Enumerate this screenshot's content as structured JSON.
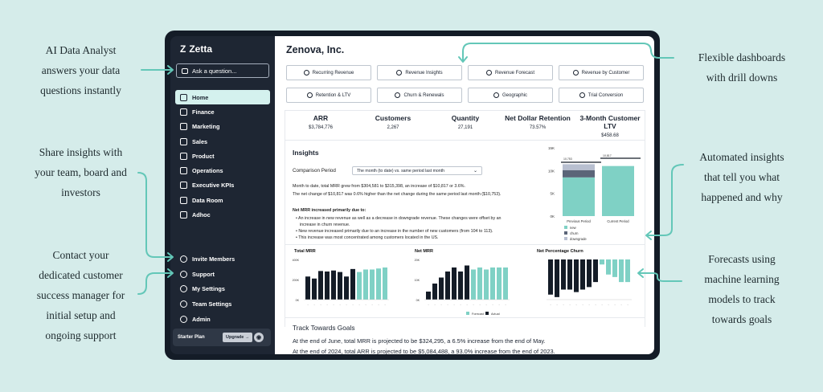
{
  "callouts": {
    "ai_analyst": [
      "AI Data Analyst",
      "answers your data",
      "questions instantly"
    ],
    "share": [
      "Share insights with",
      "your team, board and",
      "investors"
    ],
    "contact": [
      "Contact your",
      "dedicated customer",
      "success manager for",
      "initial setup and",
      "ongoing support"
    ],
    "dashboards": [
      "Flexible dashboards",
      "with drill downs"
    ],
    "insights": [
      "Automated insights",
      "that tell you what",
      "happened and why"
    ],
    "forecasts": [
      "Forecasts using",
      "machine learning",
      "models to track",
      "towards goals"
    ]
  },
  "app": {
    "logo": "Zetta",
    "ask_placeholder": "Ask a question..."
  },
  "sidebar": {
    "items": [
      {
        "label": "Home",
        "icon": "home-icon",
        "active": true
      },
      {
        "label": "Finance",
        "icon": "finance-icon"
      },
      {
        "label": "Marketing",
        "icon": "marketing-icon"
      },
      {
        "label": "Sales",
        "icon": "sales-icon"
      },
      {
        "label": "Product",
        "icon": "product-icon"
      },
      {
        "label": "Operations",
        "icon": "operations-icon"
      },
      {
        "label": "Executive KPIs",
        "icon": "kpi-icon"
      },
      {
        "label": "Data Room",
        "icon": "data-room-icon"
      },
      {
        "label": "Adhoc",
        "icon": "adhoc-icon"
      }
    ],
    "bottom": [
      {
        "label": "Invite Members",
        "icon": "plus-circle-icon"
      },
      {
        "label": "Support",
        "icon": "help-circle-icon"
      },
      {
        "label": "My Settings",
        "icon": "settings-icon"
      },
      {
        "label": "Team Settings",
        "icon": "team-icon"
      },
      {
        "label": "Admin",
        "icon": "user-icon"
      }
    ],
    "plan": "Starter Plan",
    "upgrade": "Upgrade →"
  },
  "main": {
    "company": "Zenova, Inc.",
    "dashboards": [
      "Recurring Revenue",
      "Revenue Insights",
      "Revenue Forecast",
      "Revenue by Customer",
      "Retention & LTV",
      "Churn & Renewals",
      "Geographic",
      "Trial Conversion"
    ],
    "kpis": [
      {
        "label": "ARR",
        "value": "$3,784,776"
      },
      {
        "label": "Customers",
        "value": "2,267"
      },
      {
        "label": "Quantity",
        "value": "27,191"
      },
      {
        "label": "Net Dollar Retention",
        "value": "73.57%"
      },
      {
        "label": "3-Month Customer LTV",
        "value": "$458.68"
      }
    ],
    "insights": {
      "title": "Insights",
      "comparison_label": "Comparison Period",
      "comparison_value": "The month (to date) vs. same period last month",
      "line1": "Month to date, total MRR grew from $304,581 to $315,398, an increase of $10,817 or 3.6%.",
      "line2": "The net change of $10,817 was 0.6% higher than the net change during the same period last month ($10,753).",
      "due_title": "Net MRR increased primarily due to:",
      "bullets": [
        "An increase in new revenue as well as a decrease in downgrade revenue. These changes were offset by an",
        "increase in churn revenue.",
        "New revenue increased primarily due to an increase in the number of new customers (from 104 to 113).",
        "This increase was most concentrated among customers located in the US."
      ]
    },
    "goals": {
      "title": "Track Towards Goals",
      "line1": "At the end of June, total MRR is projected to be $324,295, a 6.5% increase from the end of May.",
      "line2": "At the end of 2024, total ARR is projected to be $5,084,488, a 93.0% increase from the end of 2023."
    }
  },
  "chart_data": [
    {
      "type": "bar",
      "title": "",
      "categories": [
        "Previous Period",
        "Current Period"
      ],
      "series": [
        {
          "name": "new",
          "values": [
            8.5,
            11
          ]
        },
        {
          "name": "churn",
          "values": [
            1.6,
            0
          ]
        },
        {
          "name": "downgrade",
          "values": [
            1.3,
            0
          ]
        }
      ],
      "yticks": [
        "15K",
        "10K",
        "5K",
        "0K"
      ],
      "ylim": [
        0,
        15
      ],
      "markers": [
        "10,753",
        "10,817"
      ]
    },
    {
      "type": "bar",
      "title": "Total MRR",
      "yticks": [
        "400K",
        "200K",
        "0K"
      ],
      "ylim": [
        0,
        400
      ],
      "series": [
        {
          "name": "Actual",
          "values": [
            230,
            210,
            285,
            280,
            290,
            275,
            230,
            305
          ]
        },
        {
          "name": "Forecast",
          "values": [
            0,
            0,
            0,
            0,
            0,
            0,
            0,
            0,
            275,
            300,
            300,
            310,
            320
          ]
        }
      ]
    },
    {
      "type": "bar",
      "title": "Net MRR",
      "yticks": [
        "20K",
        "10K",
        "0K"
      ],
      "ylim": [
        0,
        20
      ],
      "series": [
        {
          "name": "Actual",
          "values": [
            4,
            8,
            11,
            14,
            16,
            14,
            17
          ]
        },
        {
          "name": "Forecast",
          "values": [
            0,
            0,
            0,
            0,
            0,
            0,
            0,
            15,
            16,
            15,
            16,
            16,
            16
          ]
        }
      ]
    },
    {
      "type": "bar",
      "title": "Net Percentage Churn",
      "yticks": [],
      "series": [
        {
          "name": "Actual",
          "values": [
            14,
            15,
            12,
            12,
            13,
            12,
            11,
            9
          ]
        },
        {
          "name": "Forecast",
          "values": [
            0,
            0,
            0,
            0,
            0,
            0,
            0,
            0,
            2,
            6,
            7,
            9,
            9
          ]
        }
      ],
      "legend": [
        "Forecast",
        "Actual"
      ]
    }
  ],
  "colors": {
    "forecast": "#7fd1c5",
    "actual": "#141c27",
    "churn": "#5b6578",
    "downgrade": "#b8bfd0",
    "accent": "#63c7b8"
  }
}
